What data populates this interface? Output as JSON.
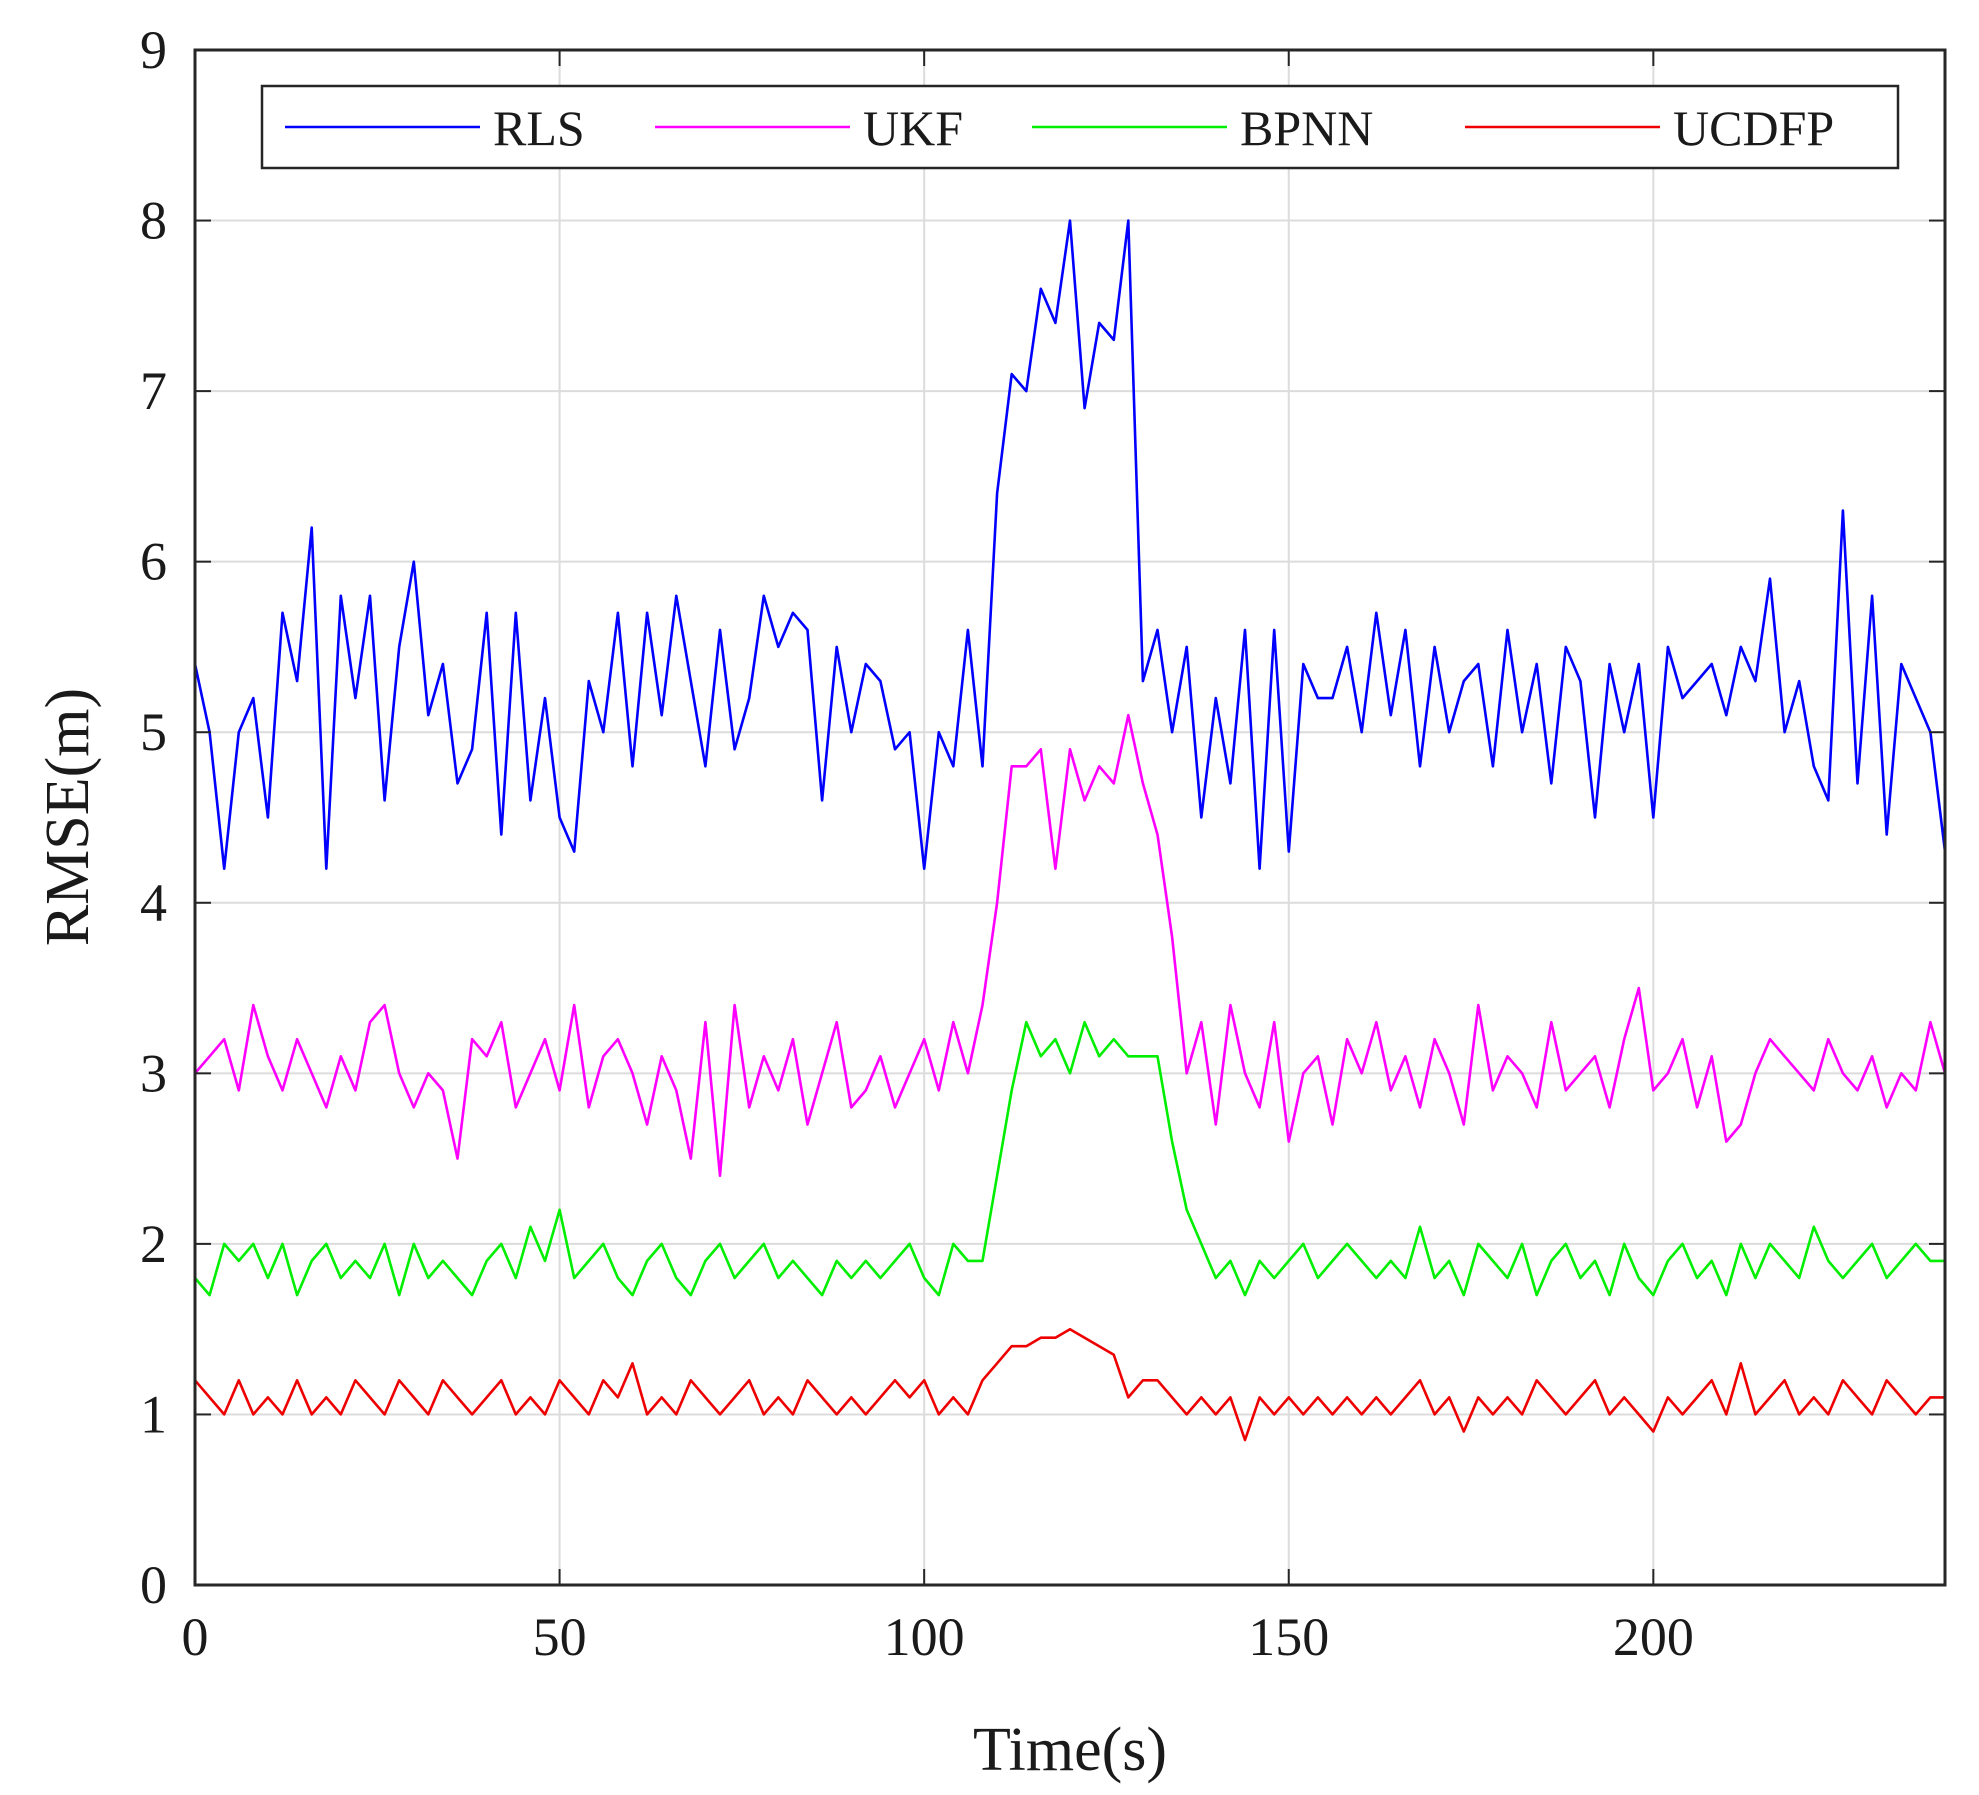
{
  "chart_data": {
    "type": "line",
    "title": "",
    "xlabel": "Time(s)",
    "ylabel": "RMSE(m)",
    "xlim": [
      0,
      240
    ],
    "ylim": [
      0,
      9
    ],
    "xticks": [
      0,
      50,
      100,
      150,
      200
    ],
    "yticks": [
      0,
      1,
      2,
      3,
      4,
      5,
      6,
      7,
      8,
      9
    ],
    "grid": true,
    "legend": {
      "placement": "top",
      "orientation": "horizontal"
    },
    "series": [
      {
        "name": "RLS",
        "color": "#0000ff",
        "x": [
          0,
          2,
          4,
          6,
          8,
          10,
          12,
          14,
          16,
          18,
          20,
          22,
          24,
          26,
          28,
          30,
          32,
          34,
          36,
          38,
          40,
          42,
          44,
          46,
          48,
          50,
          52,
          54,
          56,
          58,
          60,
          62,
          64,
          66,
          68,
          70,
          72,
          74,
          76,
          78,
          80,
          82,
          84,
          86,
          88,
          90,
          92,
          94,
          96,
          98,
          100,
          102,
          104,
          106,
          108,
          110,
          112,
          114,
          116,
          118,
          120,
          122,
          124,
          126,
          128,
          130,
          132,
          134,
          136,
          138,
          140,
          142,
          144,
          146,
          148,
          150,
          152,
          154,
          156,
          158,
          160,
          162,
          164,
          166,
          168,
          170,
          172,
          174,
          176,
          178,
          180,
          182,
          184,
          186,
          188,
          190,
          192,
          194,
          196,
          198,
          200,
          202,
          204,
          206,
          208,
          210,
          212,
          214,
          216,
          218,
          220,
          222,
          224,
          226,
          228,
          230,
          232,
          234,
          236,
          238,
          240
        ],
        "values": [
          5.4,
          5.0,
          4.2,
          5.0,
          5.2,
          4.5,
          5.7,
          5.3,
          6.2,
          4.2,
          5.8,
          5.2,
          5.8,
          4.6,
          5.5,
          6.0,
          5.1,
          5.4,
          4.7,
          4.9,
          5.7,
          4.4,
          5.7,
          4.6,
          5.2,
          4.5,
          4.3,
          5.3,
          5.0,
          5.7,
          4.8,
          5.7,
          5.1,
          5.8,
          5.3,
          4.8,
          5.6,
          4.9,
          5.2,
          5.8,
          5.5,
          5.7,
          5.6,
          4.6,
          5.5,
          5.0,
          5.4,
          5.3,
          4.9,
          5.0,
          4.2,
          5.0,
          4.8,
          5.6,
          4.8,
          6.4,
          7.1,
          7.0,
          7.6,
          7.4,
          8.0,
          6.9,
          7.4,
          7.3,
          8.0,
          5.3,
          5.6,
          5.0,
          5.5,
          4.5,
          5.2,
          4.7,
          5.6,
          4.2,
          5.6,
          4.3,
          5.4,
          5.2,
          5.2,
          5.5,
          5.0,
          5.7,
          5.1,
          5.6,
          4.8,
          5.5,
          5.0,
          5.3,
          5.4,
          4.8,
          5.6,
          5.0,
          5.4,
          4.7,
          5.5,
          5.3,
          4.5,
          5.4,
          5.0,
          5.4,
          4.5,
          5.5,
          5.2,
          5.3,
          5.4,
          5.1,
          5.5,
          5.3,
          5.9,
          5.0,
          5.3,
          4.8,
          4.6,
          6.3,
          4.7,
          5.8,
          4.4,
          5.4,
          5.2,
          5.0,
          4.3
        ]
      },
      {
        "name": "UKF",
        "color": "#ff00ff",
        "x": [
          0,
          2,
          4,
          6,
          8,
          10,
          12,
          14,
          16,
          18,
          20,
          22,
          24,
          26,
          28,
          30,
          32,
          34,
          36,
          38,
          40,
          42,
          44,
          46,
          48,
          50,
          52,
          54,
          56,
          58,
          60,
          62,
          64,
          66,
          68,
          70,
          72,
          74,
          76,
          78,
          80,
          82,
          84,
          86,
          88,
          90,
          92,
          94,
          96,
          98,
          100,
          102,
          104,
          106,
          108,
          110,
          112,
          114,
          116,
          118,
          120,
          122,
          124,
          126,
          128,
          130,
          132,
          134,
          136,
          138,
          140,
          142,
          144,
          146,
          148,
          150,
          152,
          154,
          156,
          158,
          160,
          162,
          164,
          166,
          168,
          170,
          172,
          174,
          176,
          178,
          180,
          182,
          184,
          186,
          188,
          190,
          192,
          194,
          196,
          198,
          200,
          202,
          204,
          206,
          208,
          210,
          212,
          214,
          216,
          218,
          220,
          222,
          224,
          226,
          228,
          230,
          232,
          234,
          236,
          238,
          240
        ],
        "values": [
          3.0,
          3.1,
          3.2,
          2.9,
          3.4,
          3.1,
          2.9,
          3.2,
          3.0,
          2.8,
          3.1,
          2.9,
          3.3,
          3.4,
          3.0,
          2.8,
          3.0,
          2.9,
          2.5,
          3.2,
          3.1,
          3.3,
          2.8,
          3.0,
          3.2,
          2.9,
          3.4,
          2.8,
          3.1,
          3.2,
          3.0,
          2.7,
          3.1,
          2.9,
          2.5,
          3.3,
          2.4,
          3.4,
          2.8,
          3.1,
          2.9,
          3.2,
          2.7,
          3.0,
          3.3,
          2.8,
          2.9,
          3.1,
          2.8,
          3.0,
          3.2,
          2.9,
          3.3,
          3.0,
          3.4,
          4.0,
          4.8,
          4.8,
          4.9,
          4.2,
          4.9,
          4.6,
          4.8,
          4.7,
          5.1,
          4.7,
          4.4,
          3.8,
          3.0,
          3.3,
          2.7,
          3.4,
          3.0,
          2.8,
          3.3,
          2.6,
          3.0,
          3.1,
          2.7,
          3.2,
          3.0,
          3.3,
          2.9,
          3.1,
          2.8,
          3.2,
          3.0,
          2.7,
          3.4,
          2.9,
          3.1,
          3.0,
          2.8,
          3.3,
          2.9,
          3.0,
          3.1,
          2.8,
          3.2,
          3.5,
          2.9,
          3.0,
          3.2,
          2.8,
          3.1,
          2.6,
          2.7,
          3.0,
          3.2,
          3.1,
          3.0,
          2.9,
          3.2,
          3.0,
          2.9,
          3.1,
          2.8,
          3.0,
          2.9,
          3.3,
          3.0
        ]
      },
      {
        "name": "BPNN",
        "color": "#00ee00",
        "x": [
          0,
          2,
          4,
          6,
          8,
          10,
          12,
          14,
          16,
          18,
          20,
          22,
          24,
          26,
          28,
          30,
          32,
          34,
          36,
          38,
          40,
          42,
          44,
          46,
          48,
          50,
          52,
          54,
          56,
          58,
          60,
          62,
          64,
          66,
          68,
          70,
          72,
          74,
          76,
          78,
          80,
          82,
          84,
          86,
          88,
          90,
          92,
          94,
          96,
          98,
          100,
          102,
          104,
          106,
          108,
          110,
          112,
          114,
          116,
          118,
          120,
          122,
          124,
          126,
          128,
          130,
          132,
          134,
          136,
          138,
          140,
          142,
          144,
          146,
          148,
          150,
          152,
          154,
          156,
          158,
          160,
          162,
          164,
          166,
          168,
          170,
          172,
          174,
          176,
          178,
          180,
          182,
          184,
          186,
          188,
          190,
          192,
          194,
          196,
          198,
          200,
          202,
          204,
          206,
          208,
          210,
          212,
          214,
          216,
          218,
          220,
          222,
          224,
          226,
          228,
          230,
          232,
          234,
          236,
          238,
          240
        ],
        "values": [
          1.8,
          1.7,
          2.0,
          1.9,
          2.0,
          1.8,
          2.0,
          1.7,
          1.9,
          2.0,
          1.8,
          1.9,
          1.8,
          2.0,
          1.7,
          2.0,
          1.8,
          1.9,
          1.8,
          1.7,
          1.9,
          2.0,
          1.8,
          2.1,
          1.9,
          2.2,
          1.8,
          1.9,
          2.0,
          1.8,
          1.7,
          1.9,
          2.0,
          1.8,
          1.7,
          1.9,
          2.0,
          1.8,
          1.9,
          2.0,
          1.8,
          1.9,
          1.8,
          1.7,
          1.9,
          1.8,
          1.9,
          1.8,
          1.9,
          2.0,
          1.8,
          1.7,
          2.0,
          1.9,
          1.9,
          2.4,
          2.9,
          3.3,
          3.1,
          3.2,
          3.0,
          3.3,
          3.1,
          3.2,
          3.1,
          3.1,
          3.1,
          2.6,
          2.2,
          2.0,
          1.8,
          1.9,
          1.7,
          1.9,
          1.8,
          1.9,
          2.0,
          1.8,
          1.9,
          2.0,
          1.9,
          1.8,
          1.9,
          1.8,
          2.1,
          1.8,
          1.9,
          1.7,
          2.0,
          1.9,
          1.8,
          2.0,
          1.7,
          1.9,
          2.0,
          1.8,
          1.9,
          1.7,
          2.0,
          1.8,
          1.7,
          1.9,
          2.0,
          1.8,
          1.9,
          1.7,
          2.0,
          1.8,
          2.0,
          1.9,
          1.8,
          2.1,
          1.9,
          1.8,
          1.9,
          2.0,
          1.8,
          1.9,
          2.0,
          1.9,
          1.9
        ]
      },
      {
        "name": "UCDFP",
        "color": "#ee0000",
        "x": [
          0,
          2,
          4,
          6,
          8,
          10,
          12,
          14,
          16,
          18,
          20,
          22,
          24,
          26,
          28,
          30,
          32,
          34,
          36,
          38,
          40,
          42,
          44,
          46,
          48,
          50,
          52,
          54,
          56,
          58,
          60,
          62,
          64,
          66,
          68,
          70,
          72,
          74,
          76,
          78,
          80,
          82,
          84,
          86,
          88,
          90,
          92,
          94,
          96,
          98,
          100,
          102,
          104,
          106,
          108,
          110,
          112,
          114,
          116,
          118,
          120,
          122,
          124,
          126,
          128,
          130,
          132,
          134,
          136,
          138,
          140,
          142,
          144,
          146,
          148,
          150,
          152,
          154,
          156,
          158,
          160,
          162,
          164,
          166,
          168,
          170,
          172,
          174,
          176,
          178,
          180,
          182,
          184,
          186,
          188,
          190,
          192,
          194,
          196,
          198,
          200,
          202,
          204,
          206,
          208,
          210,
          212,
          214,
          216,
          218,
          220,
          222,
          224,
          226,
          228,
          230,
          232,
          234,
          236,
          238,
          240
        ],
        "values": [
          1.2,
          1.1,
          1.0,
          1.2,
          1.0,
          1.1,
          1.0,
          1.2,
          1.0,
          1.1,
          1.0,
          1.2,
          1.1,
          1.0,
          1.2,
          1.1,
          1.0,
          1.2,
          1.1,
          1.0,
          1.1,
          1.2,
          1.0,
          1.1,
          1.0,
          1.2,
          1.1,
          1.0,
          1.2,
          1.1,
          1.3,
          1.0,
          1.1,
          1.0,
          1.2,
          1.1,
          1.0,
          1.1,
          1.2,
          1.0,
          1.1,
          1.0,
          1.2,
          1.1,
          1.0,
          1.1,
          1.0,
          1.1,
          1.2,
          1.1,
          1.2,
          1.0,
          1.1,
          1.0,
          1.2,
          1.3,
          1.4,
          1.4,
          1.45,
          1.45,
          1.5,
          1.45,
          1.4,
          1.35,
          1.1,
          1.2,
          1.2,
          1.1,
          1.0,
          1.1,
          1.0,
          1.1,
          0.85,
          1.1,
          1.0,
          1.1,
          1.0,
          1.1,
          1.0,
          1.1,
          1.0,
          1.1,
          1.0,
          1.1,
          1.2,
          1.0,
          1.1,
          0.9,
          1.1,
          1.0,
          1.1,
          1.0,
          1.2,
          1.1,
          1.0,
          1.1,
          1.2,
          1.0,
          1.1,
          1.0,
          0.9,
          1.1,
          1.0,
          1.1,
          1.2,
          1.0,
          1.3,
          1.0,
          1.1,
          1.2,
          1.0,
          1.1,
          1.0,
          1.2,
          1.1,
          1.0,
          1.2,
          1.1,
          1.0,
          1.1,
          1.1
        ]
      }
    ]
  }
}
